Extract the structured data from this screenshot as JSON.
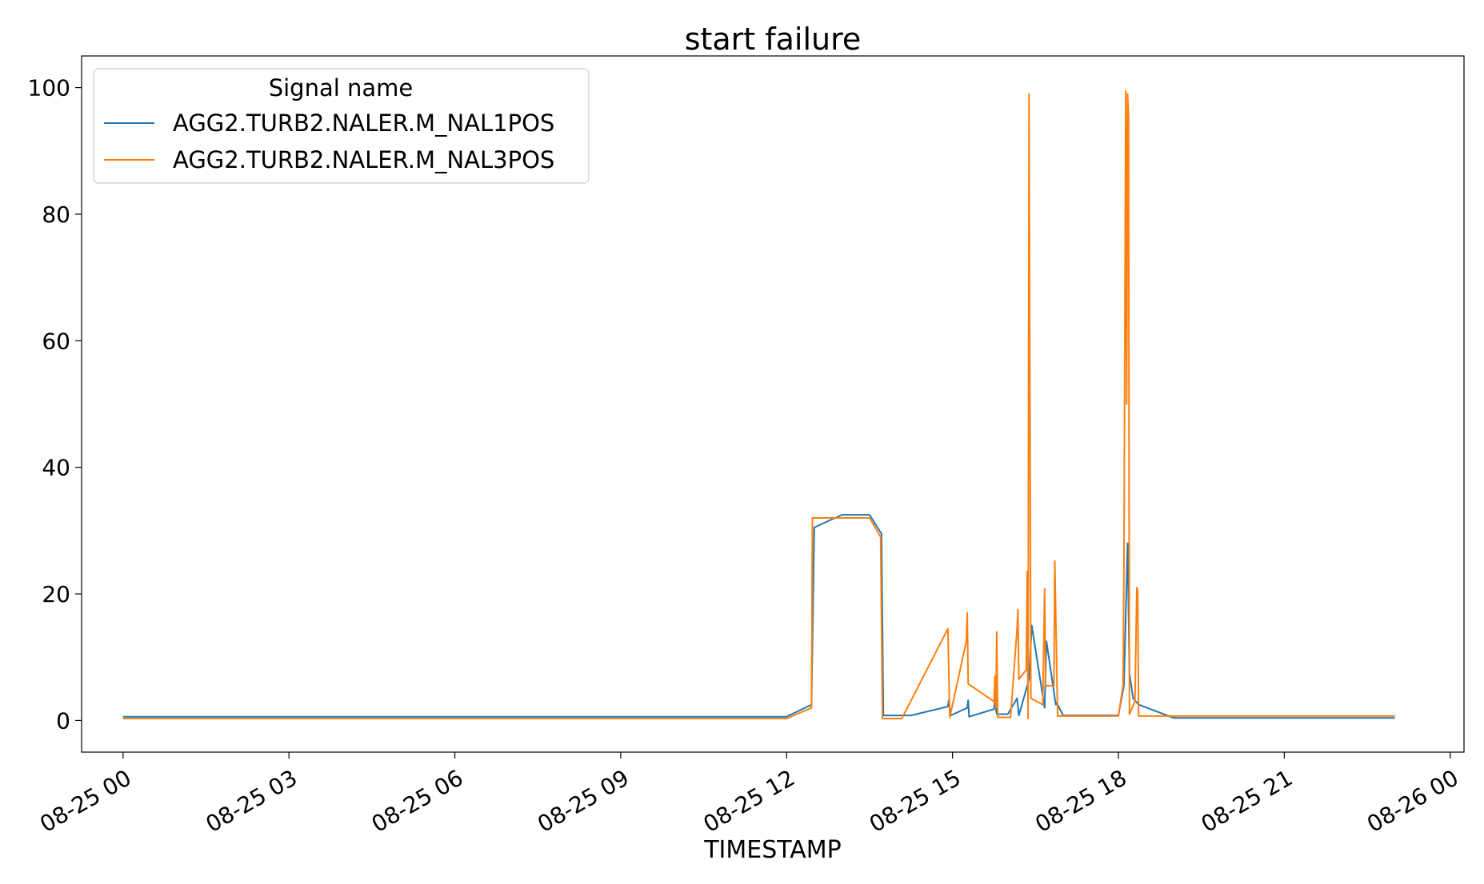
{
  "chart_data": {
    "type": "line",
    "title": "start failure",
    "xlabel": "TIMESTAMP",
    "ylabel": "",
    "x_axis": {
      "kind": "datetime",
      "range": [
        "2019-08-24 23:15",
        "2019-08-26 00:15"
      ],
      "ticks": [
        "2019-08-25 00:00",
        "2019-08-25 03:00",
        "2019-08-25 06:00",
        "2019-08-25 09:00",
        "2019-08-25 12:00",
        "2019-08-25 15:00",
        "2019-08-25 18:00",
        "2019-08-25 21:00",
        "2019-08-26 00:00"
      ],
      "tick_labels": [
        "08-25 00",
        "08-25 03",
        "08-25 06",
        "08-25 09",
        "08-25 12",
        "08-25 15",
        "08-25 18",
        "08-25 21",
        "08-26 00"
      ]
    },
    "y_axis": {
      "range": [
        -5,
        105
      ],
      "ticks": [
        0,
        20,
        40,
        60,
        80,
        100
      ],
      "tick_labels": [
        "0",
        "20",
        "40",
        "60",
        "80",
        "100"
      ]
    },
    "grid": false,
    "legend": {
      "title": "Signal name",
      "placement": "top-left"
    },
    "series": [
      {
        "name": "AGG2.TURB2.NALER.M_NAL1POS",
        "color": "#1f77b4",
        "points": [
          [
            "2019-08-25 00:00",
            0.6
          ],
          [
            "2019-08-25 12:00",
            0.6
          ],
          [
            "2019-08-25 12:27",
            2.5
          ],
          [
            "2019-08-25 12:30",
            30.5
          ],
          [
            "2019-08-25 13:00",
            32.5
          ],
          [
            "2019-08-25 13:30",
            32.5
          ],
          [
            "2019-08-25 13:43",
            29.5
          ],
          [
            "2019-08-25 13:45",
            0.8
          ],
          [
            "2019-08-25 14:15",
            0.8
          ],
          [
            "2019-08-25 14:55",
            2.2
          ],
          [
            "2019-08-25 14:56",
            3.2
          ],
          [
            "2019-08-25 14:58",
            0.8
          ],
          [
            "2019-08-25 15:16",
            2.0
          ],
          [
            "2019-08-25 15:17",
            3.2
          ],
          [
            "2019-08-25 15:18",
            0.6
          ],
          [
            "2019-08-25 15:45",
            1.8
          ],
          [
            "2019-08-25 15:46",
            3.0
          ],
          [
            "2019-08-25 15:48",
            1.0
          ],
          [
            "2019-08-25 16:00",
            1.0
          ],
          [
            "2019-08-25 16:08",
            3.0
          ],
          [
            "2019-08-25 16:10",
            3.5
          ],
          [
            "2019-08-25 16:12",
            0.8
          ],
          [
            "2019-08-25 16:23",
            6.5
          ],
          [
            "2019-08-25 16:26",
            15.0
          ],
          [
            "2019-08-25 16:40",
            2.0
          ],
          [
            "2019-08-25 16:42",
            12.5
          ],
          [
            "2019-08-25 16:52",
            2.5
          ],
          [
            "2019-08-25 16:53",
            2.8
          ],
          [
            "2019-08-25 17:00",
            0.8
          ],
          [
            "2019-08-25 18:00",
            0.8
          ],
          [
            "2019-08-25 18:06",
            5.5
          ],
          [
            "2019-08-25 18:10",
            28.0
          ],
          [
            "2019-08-25 18:12",
            7.5
          ],
          [
            "2019-08-25 18:16",
            3.5
          ],
          [
            "2019-08-25 18:22",
            2.5
          ],
          [
            "2019-08-25 19:00",
            0.4
          ],
          [
            "2019-08-25 23:00",
            0.4
          ]
        ]
      },
      {
        "name": "AGG2.TURB2.NALER.M_NAL3POS",
        "color": "#ff7f0e",
        "points": [
          [
            "2019-08-25 00:00",
            0.3
          ],
          [
            "2019-08-25 12:00",
            0.3
          ],
          [
            "2019-08-25 12:27",
            2.0
          ],
          [
            "2019-08-25 12:28",
            32.0
          ],
          [
            "2019-08-25 13:30",
            32.0
          ],
          [
            "2019-08-25 13:42",
            29.0
          ],
          [
            "2019-08-25 13:44",
            0.3
          ],
          [
            "2019-08-25 14:05",
            0.3
          ],
          [
            "2019-08-25 14:55",
            14.5
          ],
          [
            "2019-08-25 14:57",
            0.5
          ],
          [
            "2019-08-25 15:15",
            12.5
          ],
          [
            "2019-08-25 15:16",
            17.0
          ],
          [
            "2019-08-25 15:17",
            5.8
          ],
          [
            "2019-08-25 15:45",
            3.0
          ],
          [
            "2019-08-25 15:46",
            7.0
          ],
          [
            "2019-08-25 15:47",
            2.0
          ],
          [
            "2019-08-25 15:48",
            14.0
          ],
          [
            "2019-08-25 15:49",
            0.5
          ],
          [
            "2019-08-25 16:03",
            0.5
          ],
          [
            "2019-08-25 16:10",
            14.5
          ],
          [
            "2019-08-25 16:11",
            17.5
          ],
          [
            "2019-08-25 16:12",
            6.5
          ],
          [
            "2019-08-25 16:20",
            8.0
          ],
          [
            "2019-08-25 16:21",
            23.5
          ],
          [
            "2019-08-25 16:22",
            0.3
          ],
          [
            "2019-08-25 16:23",
            99.0
          ],
          [
            "2019-08-25 16:25",
            3.5
          ],
          [
            "2019-08-25 16:38",
            2.5
          ],
          [
            "2019-08-25 16:40",
            20.8
          ],
          [
            "2019-08-25 16:41",
            5.5
          ],
          [
            "2019-08-25 16:50",
            5.5
          ],
          [
            "2019-08-25 16:51",
            25.2
          ],
          [
            "2019-08-25 16:54",
            0.7
          ],
          [
            "2019-08-25 18:00",
            0.7
          ],
          [
            "2019-08-25 18:05",
            5.5
          ],
          [
            "2019-08-25 18:06",
            23.0
          ],
          [
            "2019-08-25 18:08",
            99.5
          ],
          [
            "2019-08-25 18:09",
            50.0
          ],
          [
            "2019-08-25 18:10",
            99.0
          ],
          [
            "2019-08-25 18:11",
            95.5
          ],
          [
            "2019-08-25 18:12",
            1.0
          ],
          [
            "2019-08-25 18:18",
            3.0
          ],
          [
            "2019-08-25 18:20",
            21.0
          ],
          [
            "2019-08-25 18:21",
            20.5
          ],
          [
            "2019-08-25 18:22",
            0.7
          ],
          [
            "2019-08-25 23:00",
            0.7
          ]
        ]
      }
    ]
  }
}
